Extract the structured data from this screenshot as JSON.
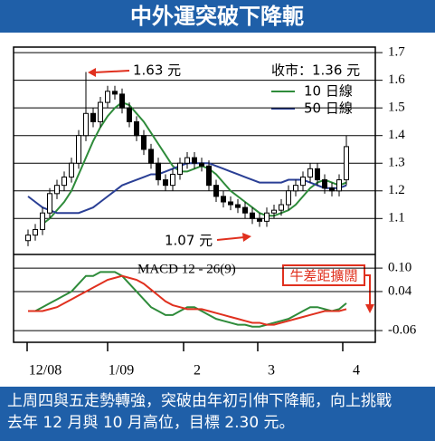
{
  "header": {
    "title": "中外運突破下降軛"
  },
  "footer": {
    "lines": [
      "上周四與五走勢轉強，突破由年初引伸下降軛，向上挑戰",
      "去年 12 月與 10 月高位，目標 2.30 元。"
    ]
  },
  "chart_data": [
    {
      "type": "candlestick",
      "x": [
        4,
        6,
        8,
        10,
        12,
        14,
        16,
        18,
        20,
        22,
        24,
        26,
        28,
        30,
        32,
        34,
        36,
        38,
        40,
        42,
        44,
        46,
        48,
        50,
        52,
        54,
        56,
        58,
        60,
        62,
        64,
        66,
        68,
        70,
        72,
        74,
        76,
        78,
        80,
        82,
        84,
        86,
        88,
        90,
        92
      ],
      "open": [
        1.02,
        1.04,
        1.06,
        1.12,
        1.19,
        1.22,
        1.25,
        1.3,
        1.4,
        1.48,
        1.45,
        1.52,
        1.56,
        1.55,
        1.5,
        1.45,
        1.4,
        1.35,
        1.3,
        1.24,
        1.22,
        1.26,
        1.3,
        1.32,
        1.3,
        1.29,
        1.22,
        1.18,
        1.16,
        1.15,
        1.14,
        1.12,
        1.1,
        1.09,
        1.12,
        1.13,
        1.15,
        1.2,
        1.22,
        1.25,
        1.28,
        1.24,
        1.21,
        1.2,
        1.24
      ],
      "high": [
        1.06,
        1.08,
        1.14,
        1.21,
        1.24,
        1.27,
        1.32,
        1.42,
        1.63,
        1.5,
        1.54,
        1.58,
        1.58,
        1.57,
        1.52,
        1.47,
        1.42,
        1.37,
        1.32,
        1.26,
        1.28,
        1.32,
        1.34,
        1.34,
        1.32,
        1.31,
        1.24,
        1.2,
        1.18,
        1.17,
        1.16,
        1.14,
        1.12,
        1.14,
        1.15,
        1.17,
        1.22,
        1.24,
        1.27,
        1.3,
        1.3,
        1.26,
        1.23,
        1.26,
        1.4
      ],
      "low": [
        1.0,
        1.02,
        1.04,
        1.1,
        1.17,
        1.2,
        1.23,
        1.28,
        1.38,
        1.43,
        1.43,
        1.5,
        1.53,
        1.48,
        1.43,
        1.38,
        1.33,
        1.28,
        1.22,
        1.2,
        1.2,
        1.24,
        1.28,
        1.28,
        1.27,
        1.2,
        1.16,
        1.14,
        1.13,
        1.12,
        1.1,
        1.08,
        1.07,
        1.07,
        1.1,
        1.11,
        1.13,
        1.18,
        1.2,
        1.23,
        1.22,
        1.19,
        1.18,
        1.18,
        1.22
      ],
      "close": [
        1.04,
        1.06,
        1.12,
        1.19,
        1.22,
        1.25,
        1.3,
        1.4,
        1.48,
        1.45,
        1.52,
        1.56,
        1.55,
        1.5,
        1.45,
        1.4,
        1.35,
        1.3,
        1.24,
        1.22,
        1.26,
        1.3,
        1.32,
        1.3,
        1.29,
        1.22,
        1.18,
        1.16,
        1.15,
        1.14,
        1.12,
        1.1,
        1.09,
        1.12,
        1.13,
        1.15,
        1.2,
        1.22,
        1.25,
        1.28,
        1.24,
        1.21,
        1.2,
        1.24,
        1.36
      ],
      "series": [
        {
          "name": "10 日線",
          "color": "#2e8b3a",
          "values": [
            null,
            null,
            1.08,
            1.1,
            1.13,
            1.16,
            1.2,
            1.26,
            1.32,
            1.38,
            1.43,
            1.47,
            1.5,
            1.52,
            1.51,
            1.48,
            1.45,
            1.41,
            1.37,
            1.33,
            1.29,
            1.27,
            1.27,
            1.28,
            1.29,
            1.28,
            1.26,
            1.23,
            1.2,
            1.18,
            1.16,
            1.14,
            1.12,
            1.11,
            1.11,
            1.12,
            1.13,
            1.15,
            1.18,
            1.21,
            1.23,
            1.24,
            1.23,
            1.22,
            1.23
          ]
        },
        {
          "name": "50 日線",
          "color": "#2a3f95",
          "values": [
            1.18,
            1.16,
            1.14,
            1.13,
            1.12,
            1.12,
            1.12,
            1.12,
            1.13,
            1.14,
            1.16,
            1.18,
            1.2,
            1.22,
            1.23,
            1.24,
            1.25,
            1.26,
            1.26,
            1.27,
            1.28,
            1.29,
            1.3,
            1.3,
            1.3,
            1.3,
            1.29,
            1.28,
            1.27,
            1.26,
            1.25,
            1.24,
            1.23,
            1.23,
            1.23,
            1.23,
            1.24,
            1.24,
            1.24,
            1.23,
            1.22,
            1.21,
            1.21,
            1.21,
            1.22
          ]
        }
      ],
      "annotations": [
        "1.63 元",
        "1.07 元",
        "收市：1.36 元"
      ],
      "xlim": [
        0,
        100
      ],
      "ylim": [
        0.97,
        1.72
      ],
      "yticks": [
        1.1,
        1.2,
        1.3,
        1.4,
        1.5,
        1.6,
        1.7
      ],
      "grid": true
    },
    {
      "type": "line",
      "title": "MACD 12 - 26(9)",
      "x": [
        4,
        6,
        8,
        10,
        12,
        14,
        16,
        18,
        20,
        22,
        24,
        26,
        28,
        30,
        32,
        34,
        36,
        38,
        40,
        42,
        44,
        46,
        48,
        50,
        52,
        54,
        56,
        58,
        60,
        62,
        64,
        66,
        68,
        70,
        72,
        74,
        76,
        78,
        80,
        82,
        84,
        86,
        88,
        90,
        92
      ],
      "series": [
        {
          "color": "#2e8b3a",
          "values": [
            -0.01,
            -0.01,
            0,
            0.01,
            0.02,
            0.03,
            0.04,
            0.06,
            0.08,
            0.08,
            0.09,
            0.09,
            0.09,
            0.08,
            0.06,
            0.04,
            0.02,
            0,
            -0.01,
            -0.02,
            -0.02,
            -0.01,
            0,
            0,
            -0.01,
            -0.02,
            -0.03,
            -0.035,
            -0.04,
            -0.045,
            -0.045,
            -0.05,
            -0.05,
            -0.045,
            -0.04,
            -0.035,
            -0.03,
            -0.02,
            -0.01,
            0,
            0,
            -0.005,
            -0.01,
            -0.005,
            0.01
          ]
        },
        {
          "color": "#e0301e",
          "values": [
            -0.01,
            -0.01,
            -0.01,
            -0.005,
            0,
            0.01,
            0.02,
            0.03,
            0.04,
            0.05,
            0.06,
            0.07,
            0.075,
            0.08,
            0.075,
            0.07,
            0.06,
            0.045,
            0.03,
            0.015,
            0.005,
            0,
            -0.005,
            -0.005,
            -0.005,
            -0.01,
            -0.015,
            -0.02,
            -0.025,
            -0.03,
            -0.035,
            -0.04,
            -0.04,
            -0.045,
            -0.045,
            -0.04,
            -0.035,
            -0.03,
            -0.025,
            -0.02,
            -0.015,
            -0.01,
            -0.01,
            -0.01,
            -0.005
          ]
        }
      ],
      "annotations": [
        "牛差距擴闊"
      ],
      "xlim": [
        0,
        100
      ],
      "ylim": [
        -0.09,
        0.135
      ],
      "yticks": [
        {
          "value": 0.1,
          "label": "0.10"
        },
        0.04,
        -0.06
      ],
      "xticks": [
        {
          "value": 3.75,
          "label": "12/08"
        },
        {
          "value": 26,
          "label": "1/09"
        },
        {
          "value": 47,
          "label": "2"
        },
        {
          "value": 67.5,
          "label": "3"
        },
        {
          "value": 91,
          "label": "4"
        }
      ],
      "grid": true
    }
  ]
}
